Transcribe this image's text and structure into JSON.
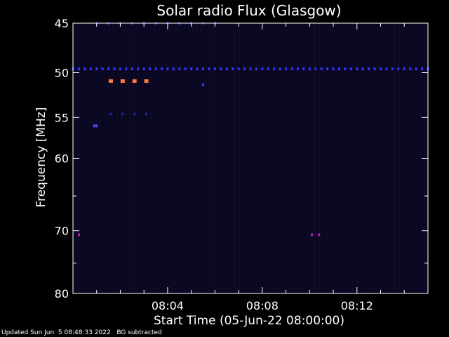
{
  "chart_data": {
    "type": "heatmap",
    "title": "Solar radio Flux (Glasgow)",
    "xlabel": "Start Time (05-Jun-22 08:00:00)",
    "ylabel": "Frequency [MHz]",
    "x_range_minutes": [
      0,
      15
    ],
    "y_range_mhz": [
      45,
      80
    ],
    "y_scale": "log",
    "x_ticks": [
      {
        "minute": 4,
        "label": "08:04"
      },
      {
        "minute": 8,
        "label": "08:08"
      },
      {
        "minute": 12,
        "label": "08:12"
      }
    ],
    "y_ticks": [
      {
        "mhz": 45,
        "label": "45"
      },
      {
        "mhz": 50,
        "label": "50"
      },
      {
        "mhz": 55,
        "label": "55"
      },
      {
        "mhz": 60,
        "label": "60"
      },
      {
        "mhz": 70,
        "label": "70"
      },
      {
        "mhz": 80,
        "label": "80"
      }
    ],
    "background_color": "#0a0820",
    "features": [
      {
        "name": "persistent-line",
        "mhz": 49.6,
        "x_start": 0,
        "x_end": 15,
        "x_step": 0.25,
        "color": "#3333ff"
      },
      {
        "name": "strong-burst",
        "mhz": 50.9,
        "x_start": 1.6,
        "x_end": 3.2,
        "x_step": 0.5,
        "color": "#ff7a3a"
      },
      {
        "name": "faint-band",
        "mhz": 54.6,
        "x_start": 1.6,
        "x_end": 3.2,
        "x_step": 0.5,
        "color": "#1f1f9a"
      },
      {
        "name": "top-trace",
        "mhz": 45.0,
        "x_start": 1.0,
        "x_end": 6.0,
        "x_step": 0.5,
        "color": "#2a2ab0"
      },
      {
        "name": "spot-a",
        "mhz": 51.3,
        "x_start": 5.5,
        "x_end": 5.5,
        "x_step": 1,
        "color": "#3a3aff"
      },
      {
        "name": "spot-b",
        "mhz": 56.0,
        "x_start": 0.9,
        "x_end": 1.0,
        "x_step": 0.1,
        "color": "#4a4aff"
      },
      {
        "name": "spot-c",
        "mhz": 70.6,
        "x_start": 0.25,
        "x_end": 0.25,
        "x_step": 1,
        "color": "#b020c0"
      },
      {
        "name": "spot-d",
        "mhz": 70.6,
        "x_start": 10.1,
        "x_end": 10.4,
        "x_step": 0.3,
        "color": "#b020c0"
      }
    ]
  },
  "footer": {
    "updated_text": "Updated Sun Jun  5 08:48:33 2022",
    "bg_text": "BG subtracted"
  }
}
